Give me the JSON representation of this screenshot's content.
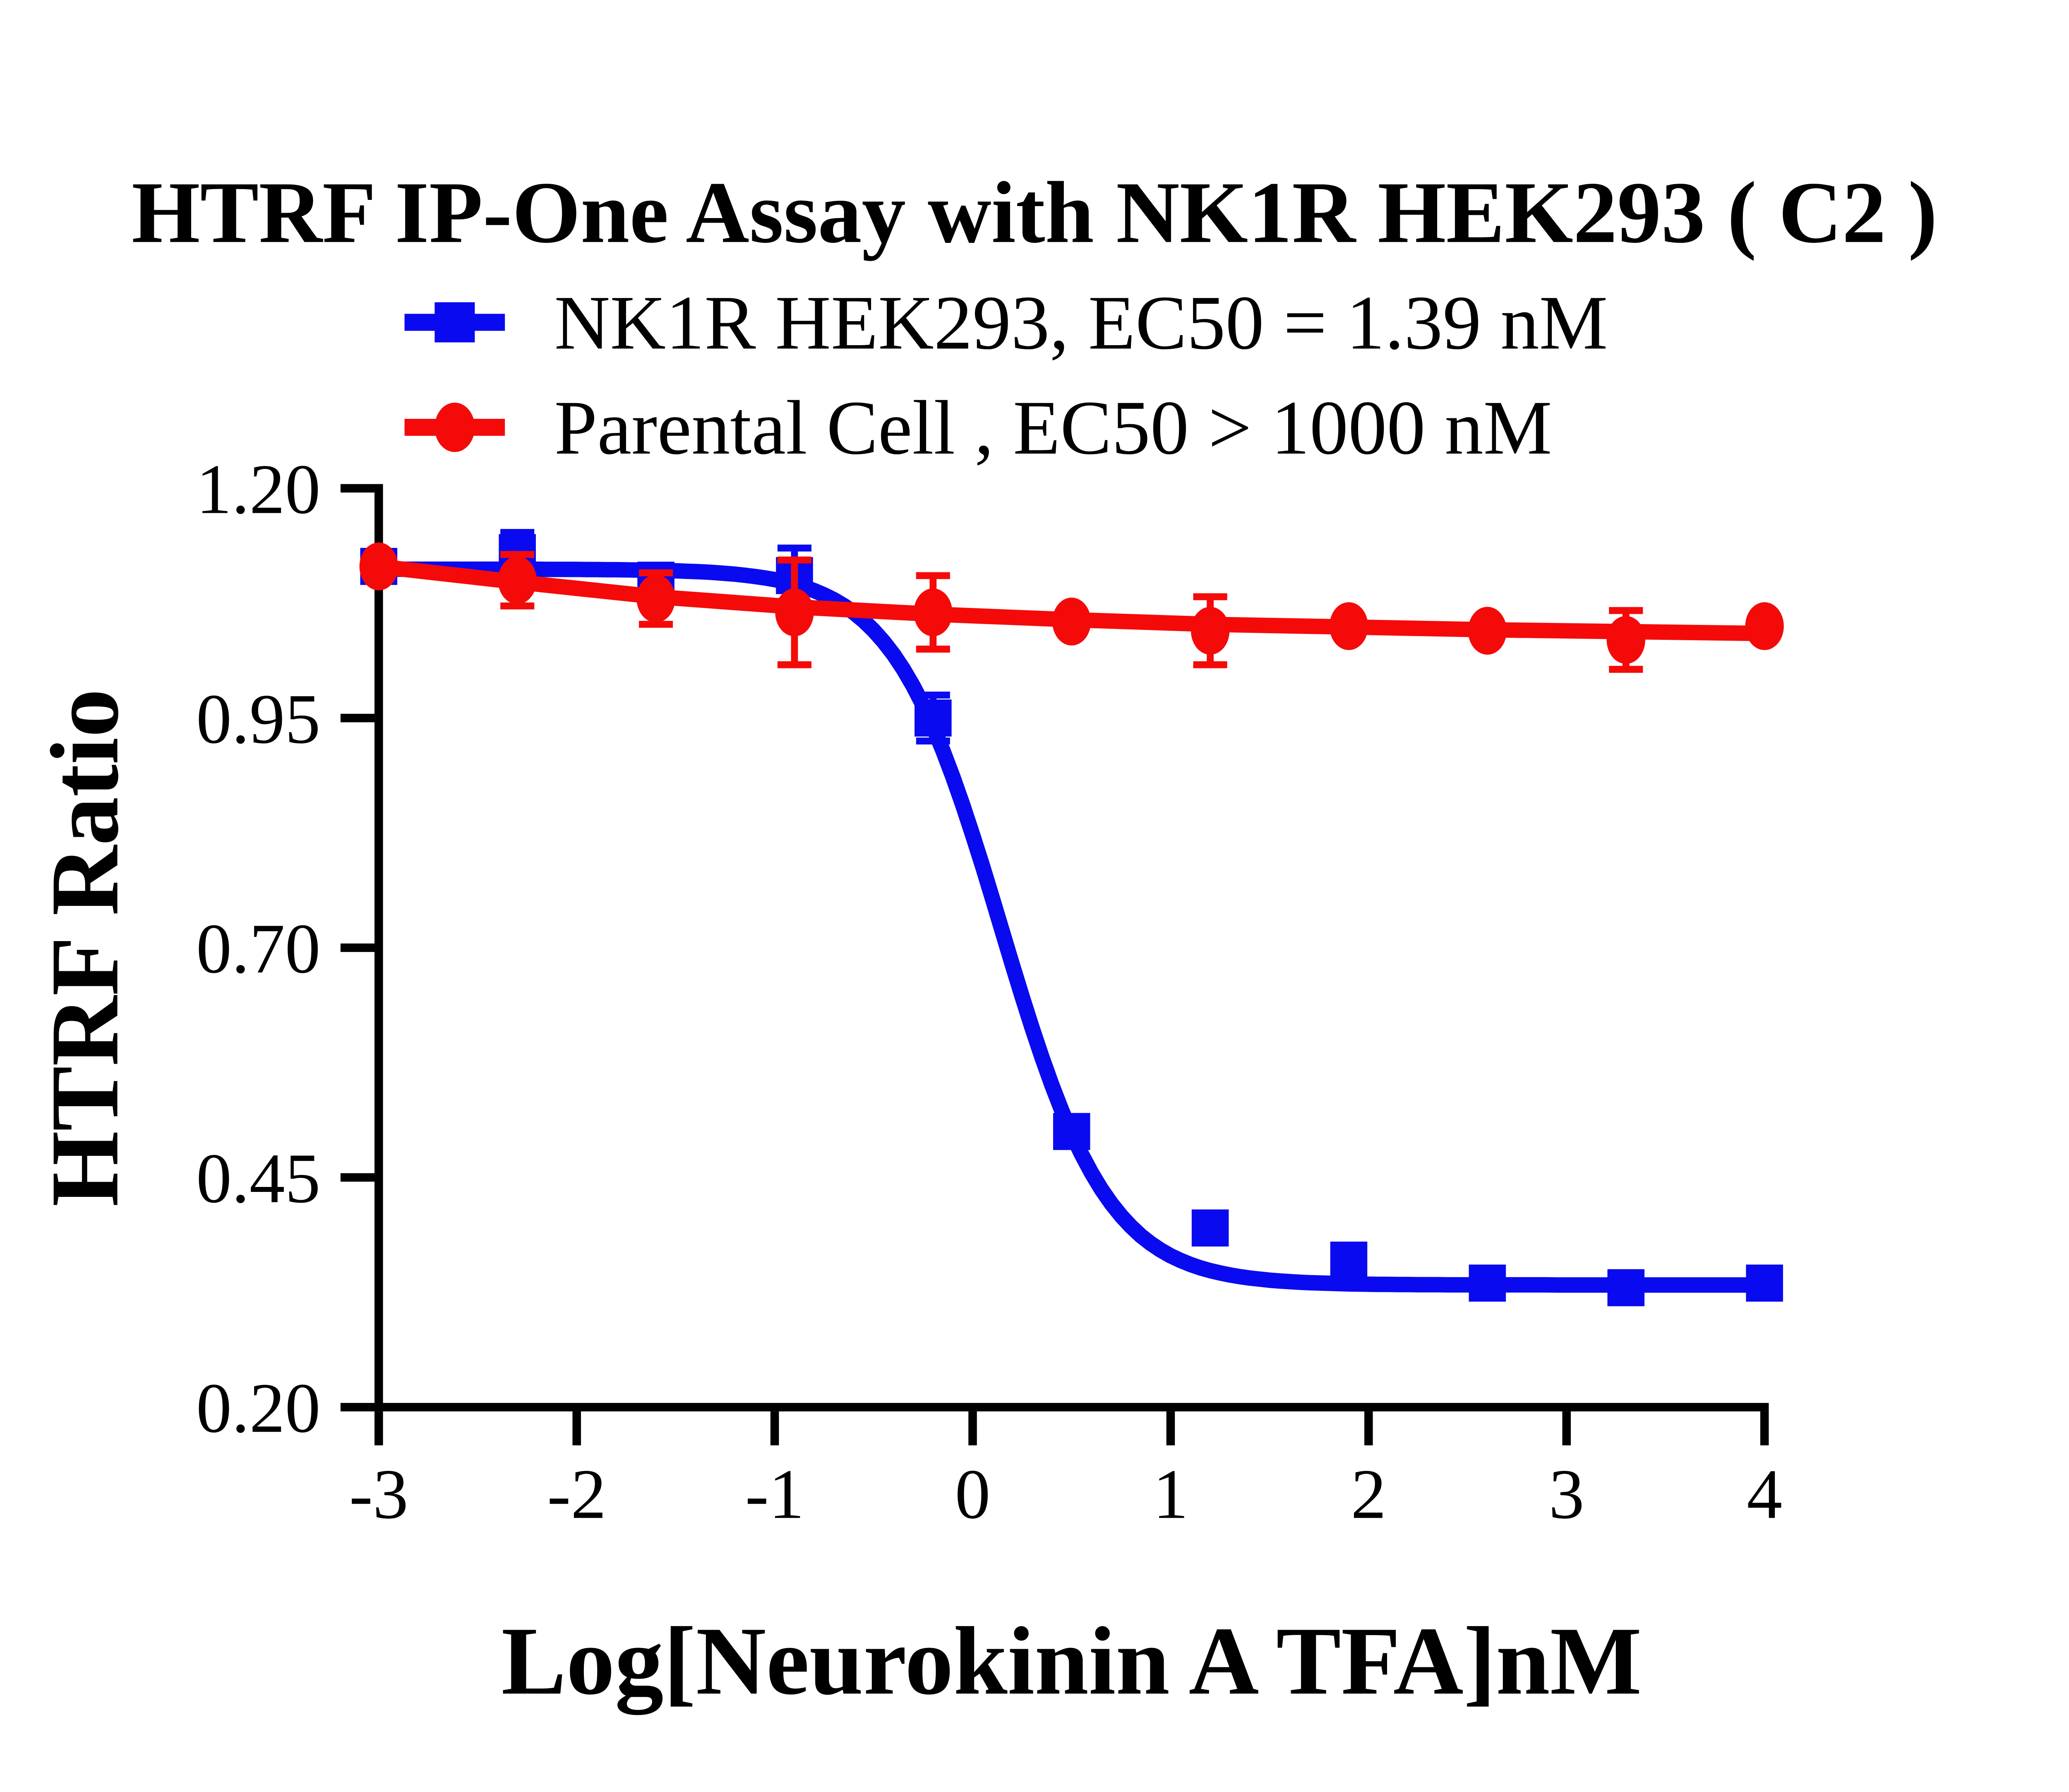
{
  "title": "HTRF IP-One Assay with NK1R HEK293 ( C2 )",
  "legend": [
    {
      "label": "NK1R HEK293,  EC50 = 1.39 nM",
      "series": "NK1R HEK293",
      "ec50": "EC50 = 1.39 nM",
      "color": "#0a0af0",
      "marker": "square"
    },
    {
      "label": "Parental Cell ,  EC50 > 1000 nM",
      "series": "Parental Cell",
      "ec50": "EC50 > 1000 nM",
      "color": "#f50a0a",
      "marker": "circle"
    }
  ],
  "x_axis": {
    "label": "Log[Neurokinin A TFA]nM",
    "ticks": [
      -3,
      -2,
      -1,
      0,
      1,
      2,
      3,
      4
    ],
    "range": [
      -3,
      4
    ]
  },
  "y_axis": {
    "label": "HTRF Ratio",
    "ticks": [
      "1.20",
      "0.95",
      "0.70",
      "0.45",
      "0.20"
    ],
    "range": [
      0.2,
      1.2
    ]
  },
  "colors": {
    "axis": "#000000",
    "blue_series": "#0a0af0",
    "red_series": "#f50a0a",
    "background": "#ffffff"
  },
  "chart_data": {
    "type": "line",
    "title": "HTRF IP-One Assay with NK1R HEK293 ( C2 )",
    "xlabel": "Log[Neurokinin A TFA]nM",
    "ylabel": "HTRF Ratio",
    "xlim": [
      -3,
      4
    ],
    "ylim": [
      0.2,
      1.2
    ],
    "grid": false,
    "legend_position": "top",
    "x": [
      -3,
      -2.3,
      -1.6,
      -0.9,
      -0.2,
      0.5,
      1.2,
      1.9,
      2.6,
      3.3,
      4
    ],
    "series": [
      {
        "name": "NK1R HEK293",
        "ec50_label": "EC50 = 1.39 nM",
        "color": "#0a0af0",
        "marker": "square",
        "values": [
          1.115,
          1.13,
          1.1,
          1.105,
          0.95,
          0.5,
          0.395,
          0.36,
          0.335,
          0.33,
          0.335
        ],
        "errors": [
          0.008,
          0.022,
          0.01,
          0.03,
          0.025,
          0.008,
          0.008,
          0.008,
          0.006,
          0.006,
          0.008
        ],
        "fit": {
          "type": "sigmoid-4PL",
          "top": 1.112,
          "bottom": 0.333,
          "logEC50": 0.143,
          "hill": 1.6
        }
      },
      {
        "name": "Parental Cell",
        "ec50_label": "EC50 > 1000 nM",
        "color": "#f50a0a",
        "marker": "circle",
        "values": [
          1.115,
          1.1,
          1.08,
          1.065,
          1.065,
          1.055,
          1.045,
          1.05,
          1.045,
          1.035,
          1.05
        ],
        "errors": [
          0.008,
          0.028,
          0.028,
          0.057,
          0.04,
          0.008,
          0.037,
          0.008,
          0.008,
          0.032,
          0.008
        ],
        "trend": [
          1.115,
          1.098,
          1.082,
          1.071,
          1.063,
          1.057,
          1.052,
          1.049,
          1.046,
          1.044,
          1.042
        ]
      }
    ]
  }
}
